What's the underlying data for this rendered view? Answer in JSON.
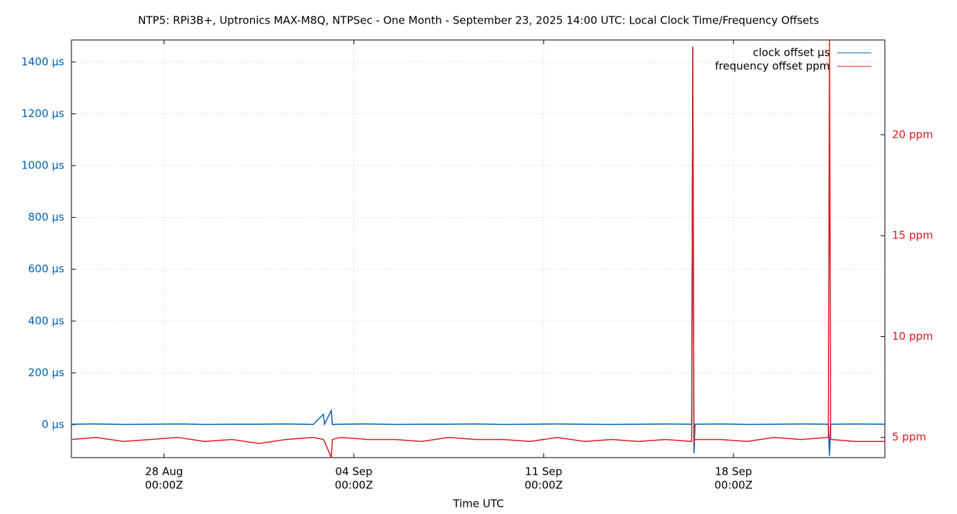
{
  "chart_data": {
    "type": "line",
    "title": "NTP5: RPi3B+, Uptronics MAX-M8Q, NTPSec - One Month - September 23, 2025 14:00 UTC: Local Clock Time/Frequency Offsets",
    "x_label": "Time UTC",
    "x": [
      "2025-08-24T14:00Z",
      "2025-08-25T12:00Z",
      "2025-08-26T12:00Z",
      "2025-08-27T12:00Z",
      "2025-08-28T12:00Z",
      "2025-08-29T12:00Z",
      "2025-08-30T12:00Z",
      "2025-08-31T12:00Z",
      "2025-09-01T12:00Z",
      "2025-09-02T12:00Z",
      "2025-09-02T21:00Z",
      "2025-09-02T22:00Z",
      "2025-09-03T04:00Z",
      "2025-09-03T05:00Z",
      "2025-09-03T12:00Z",
      "2025-09-04T12:00Z",
      "2025-09-05T12:00Z",
      "2025-09-06T12:00Z",
      "2025-09-07T12:00Z",
      "2025-09-08T12:00Z",
      "2025-09-09T12:00Z",
      "2025-09-10T12:00Z",
      "2025-09-11T12:00Z",
      "2025-09-12T12:00Z",
      "2025-09-13T12:00Z",
      "2025-09-14T12:00Z",
      "2025-09-15T12:00Z",
      "2025-09-16T11:00Z",
      "2025-09-16T12:00Z",
      "2025-09-16T13:00Z",
      "2025-09-16T14:00Z",
      "2025-09-17T12:00Z",
      "2025-09-18T12:00Z",
      "2025-09-19T12:00Z",
      "2025-09-20T12:00Z",
      "2025-09-21T12:00Z",
      "2025-09-21T13:00Z",
      "2025-09-21T14:00Z",
      "2025-09-22T12:00Z",
      "2025-09-23T14:00Z"
    ],
    "series": [
      {
        "name": "clock offset µs",
        "color": "#0060ad",
        "axis": "y",
        "values": [
          2,
          3,
          1,
          2,
          3,
          1,
          2,
          2,
          3,
          1,
          40,
          2,
          55,
          1,
          2,
          3,
          1,
          2,
          2,
          3,
          1,
          2,
          3,
          2,
          1,
          2,
          3,
          2,
          1460,
          -110,
          2,
          3,
          1,
          2,
          3,
          2,
          -120,
          2,
          3,
          2
        ]
      },
      {
        "name": "frequency offset ppm",
        "color": "#dd181f",
        "axis": "y2",
        "values": [
          4.9,
          5.0,
          4.8,
          4.9,
          5.0,
          4.8,
          4.9,
          4.7,
          4.9,
          5.0,
          4.9,
          4.8,
          4.0,
          4.9,
          5.0,
          4.9,
          4.9,
          4.8,
          5.0,
          4.9,
          4.9,
          4.8,
          5.0,
          4.8,
          4.9,
          4.8,
          4.9,
          4.8,
          24.3,
          4.8,
          4.9,
          4.9,
          4.8,
          5.0,
          4.9,
          5.0,
          24.7,
          4.9,
          4.8,
          4.8
        ]
      }
    ],
    "xlim": [
      "2025-08-24T14:00Z",
      "2025-09-23T14:00Z"
    ],
    "xticks": [
      {
        "value": "2025-08-28T00:00Z",
        "label": [
          "28 Aug",
          "00:00Z"
        ]
      },
      {
        "value": "2025-09-04T00:00Z",
        "label": [
          "04 Sep",
          "00:00Z"
        ]
      },
      {
        "value": "2025-09-11T00:00Z",
        "label": [
          "11 Sep",
          "00:00Z"
        ]
      },
      {
        "value": "2025-09-18T00:00Z",
        "label": [
          "18 Sep",
          "00:00Z"
        ]
      }
    ],
    "ylim": [
      -127,
      1485
    ],
    "yticks": [
      {
        "value": 0,
        "label": "0 µs"
      },
      {
        "value": 200,
        "label": "200 µs"
      },
      {
        "value": 400,
        "label": "400 µs"
      },
      {
        "value": 600,
        "label": "600 µs"
      },
      {
        "value": 800,
        "label": "800 µs"
      },
      {
        "value": 1000,
        "label": "1000 µs"
      },
      {
        "value": 1200,
        "label": "1200 µs"
      },
      {
        "value": 1400,
        "label": "1400 µs"
      }
    ],
    "y2lim": [
      4.0,
      24.7
    ],
    "y2ticks": [
      {
        "value": 5,
        "label": "5 ppm"
      },
      {
        "value": 10,
        "label": "10 ppm"
      },
      {
        "value": 15,
        "label": "15 ppm"
      },
      {
        "value": 20,
        "label": "20 ppm"
      }
    ],
    "grid": true,
    "legend": "top-right"
  }
}
